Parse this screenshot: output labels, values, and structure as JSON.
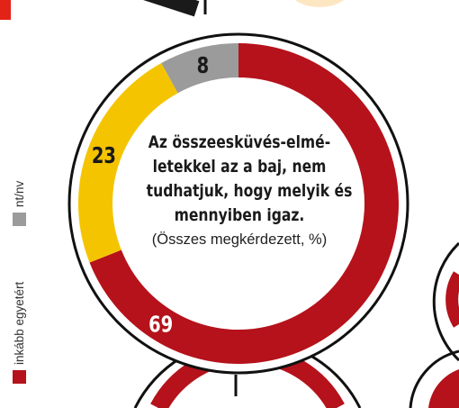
{
  "chart_data": {
    "type": "pie",
    "variant": "donut",
    "title": "Az összeesküvés-elmé- letekkel az a baj, nem tudhatjuk, hogy melyik és mennyiben igaz.",
    "title_lines": [
      "Az összeesküvés-elmé-",
      "letekkel az a baj, nem",
      "tudhatjuk, hogy melyik és",
      "mennyiben igaz."
    ],
    "note": "(Összes megkérdezett, %)",
    "units": "%",
    "slices": [
      {
        "label": "inkább egyetért",
        "value": 69,
        "value_label": "69",
        "color": "#b5121b"
      },
      {
        "label": "",
        "value": 23,
        "value_label": "23",
        "color": "#f5c400"
      },
      {
        "label": "nt/nv",
        "value": 8,
        "value_label": "8",
        "color": "#9b9b9b"
      }
    ],
    "legend": {
      "placement": "left, vertical",
      "entries": [
        {
          "label": "inkább egyetért",
          "color": "#b5121b"
        },
        {
          "label": "nt/nv",
          "color": "#9b9b9b"
        }
      ]
    }
  },
  "colors": {
    "red": "#b5121b",
    "yellow": "#f5c400",
    "gray": "#9b9b9b",
    "ring_outline": "#111111"
  }
}
